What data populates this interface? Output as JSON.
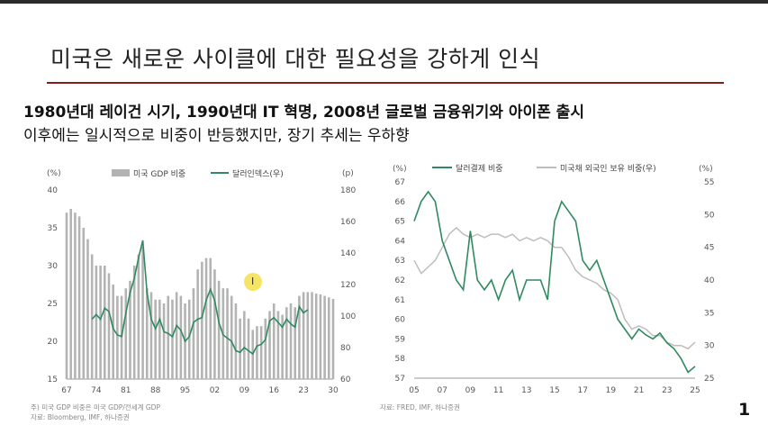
{
  "slide": {
    "title": "미국은 새로운 사이클에 대한 필요성을 강하게 인식",
    "subtitle_line1": "1980년대 레이건 시기, 1990년대 IT 혁명, 2008년 글로벌 금융위기와 아이폰 출시",
    "subtitle_line2": "이후에는 일시적으로 비중이 반등했지만, 장기 추세는 우하향",
    "page_number": "1",
    "cursor_glyph": "I"
  },
  "colors": {
    "accent_line": "#8b1a1a",
    "green": "#2f8a5f",
    "bar": "#b3b3b3",
    "grey_line": "#bdbdbd"
  },
  "chart_data": [
    {
      "type": "bar+line",
      "series": [
        {
          "name": "미국 GDP 비중",
          "axis": "left",
          "x": [
            67,
            68,
            69,
            70,
            71,
            72,
            73,
            74,
            75,
            76,
            77,
            78,
            79,
            80,
            81,
            82,
            83,
            84,
            85,
            86,
            87,
            88,
            89,
            90,
            91,
            92,
            93,
            94,
            95,
            96,
            97,
            98,
            99,
            0,
            1,
            2,
            3,
            4,
            5,
            6,
            7,
            8,
            9,
            10,
            11,
            12,
            13,
            14,
            15,
            16,
            17,
            18,
            19,
            20,
            21,
            22,
            23,
            24,
            25,
            26,
            27,
            28,
            29,
            30
          ],
          "values": [
            37,
            37.5,
            37,
            36.5,
            35,
            33.5,
            31.5,
            30,
            30,
            30,
            29,
            27.5,
            26,
            26,
            27,
            28,
            30,
            31.5,
            32.5,
            27,
            26.5,
            25.5,
            25.5,
            25,
            26,
            25.5,
            26.5,
            26,
            25,
            25.5,
            27,
            29.5,
            30.5,
            31,
            31,
            29.5,
            28,
            27,
            27,
            26,
            25,
            23,
            24,
            23,
            21.5,
            22,
            22,
            23,
            24,
            25,
            24,
            23.5,
            24.5,
            25,
            24.5,
            26,
            26.5,
            26.5,
            26.5,
            26.3,
            26.2,
            26,
            25.8,
            25.6
          ]
        },
        {
          "name": "달러인덱스(우)",
          "axis": "right",
          "x": [
            73,
            74,
            75,
            76,
            77,
            78,
            79,
            80,
            81,
            82,
            83,
            84,
            85,
            86,
            87,
            88,
            89,
            90,
            91,
            92,
            93,
            94,
            95,
            96,
            97,
            98,
            99,
            0,
            1,
            2,
            3,
            4,
            5,
            6,
            7,
            8,
            9,
            10,
            11,
            12,
            13,
            14,
            15,
            16,
            17,
            18,
            19,
            20,
            21,
            22,
            23,
            24
          ],
          "values": [
            98,
            101,
            98,
            105,
            103,
            92,
            88,
            87,
            102,
            115,
            124,
            137,
            148,
            115,
            98,
            92,
            98,
            90,
            89,
            87,
            94,
            91,
            84,
            87,
            96,
            98,
            99,
            110,
            117,
            110,
            96,
            88,
            86,
            84,
            78,
            77,
            80,
            78,
            76,
            81,
            82,
            85,
            97,
            99,
            96,
            93,
            98,
            95,
            93,
            106,
            102,
            104
          ]
        }
      ],
      "title": "",
      "xlabel": "",
      "ylabel_left": "(%)",
      "ylabel_right": "(p)",
      "xticks": [
        "67",
        "74",
        "81",
        "88",
        "95",
        "02",
        "09",
        "16",
        "23",
        "30"
      ],
      "yticks_left": [
        "40",
        "35",
        "30",
        "25",
        "20",
        "15"
      ],
      "yticks_right": [
        "180",
        "160",
        "140",
        "120",
        "100",
        "80",
        "60"
      ],
      "ylim_left": [
        15,
        40
      ],
      "ylim_right": [
        60,
        180
      ],
      "note": "주) 미국 GDP 비중은 미국 GDP/전세계 GDP",
      "source": "자료: Bloomberg, IMF, 하나증권"
    },
    {
      "type": "line",
      "series": [
        {
          "name": "달러결제 비중",
          "axis": "left",
          "x": [
            2005,
            2005.5,
            2006,
            2006.5,
            2007,
            2007.5,
            2008,
            2008.5,
            2009,
            2009.5,
            2010,
            2010.5,
            2011,
            2011.5,
            2012,
            2012.5,
            2013,
            2013.5,
            2014,
            2014.5,
            2015,
            2015.5,
            2016,
            2016.5,
            2017,
            2017.5,
            2018,
            2018.5,
            2019,
            2019.5,
            2020,
            2020.5,
            2021,
            2021.5,
            2022,
            2022.5,
            2023,
            2023.5,
            2024,
            2024.5,
            2025
          ],
          "values": [
            65,
            66,
            66.5,
            66,
            64,
            63,
            62,
            61.5,
            64.5,
            62,
            61.5,
            62,
            61,
            62,
            62.5,
            61,
            62,
            62,
            62,
            61,
            65,
            66,
            65.5,
            65,
            63,
            62.5,
            63,
            62,
            61,
            60,
            59.5,
            59,
            59.5,
            59.2,
            59,
            59.3,
            58.8,
            58.5,
            58,
            57.3,
            57.6
          ]
        },
        {
          "name": "미국채 외국인 보유 비중(우)",
          "axis": "right",
          "x": [
            2005,
            2005.5,
            2006,
            2006.5,
            2007,
            2007.5,
            2008,
            2008.5,
            2009,
            2009.5,
            2010,
            2010.5,
            2011,
            2011.5,
            2012,
            2012.5,
            2013,
            2013.5,
            2014,
            2014.5,
            2015,
            2015.5,
            2016,
            2016.5,
            2017,
            2017.5,
            2018,
            2018.5,
            2019,
            2019.5,
            2020,
            2020.5,
            2021,
            2021.5,
            2022,
            2022.5,
            2023,
            2023.5,
            2024,
            2024.5,
            2025
          ],
          "values": [
            43,
            41,
            42,
            43,
            45,
            47,
            48,
            47,
            46.5,
            47,
            46.5,
            47,
            47,
            46.5,
            47,
            46,
            46.5,
            46,
            46.5,
            46,
            45,
            45,
            43.5,
            41.5,
            40.5,
            40,
            39.5,
            38.5,
            38,
            37,
            34,
            32.5,
            33,
            32.5,
            31.5,
            31.5,
            30.5,
            30,
            30,
            29.5,
            30.5
          ]
        }
      ],
      "title": "",
      "xlabel": "",
      "ylabel_left": "(%)",
      "ylabel_right": "(%)",
      "xticks": [
        "05",
        "07",
        "09",
        "11",
        "13",
        "15",
        "17",
        "19",
        "21",
        "23",
        "25"
      ],
      "yticks_left": [
        "67",
        "66",
        "65",
        "64",
        "63",
        "62",
        "61",
        "60",
        "59",
        "58",
        "57"
      ],
      "yticks_right": [
        "55",
        "50",
        "45",
        "40",
        "35",
        "30",
        "25"
      ],
      "ylim_left": [
        57,
        67
      ],
      "ylim_right": [
        25,
        55
      ],
      "source": "자료: FRED, IMF, 하나증권"
    }
  ]
}
